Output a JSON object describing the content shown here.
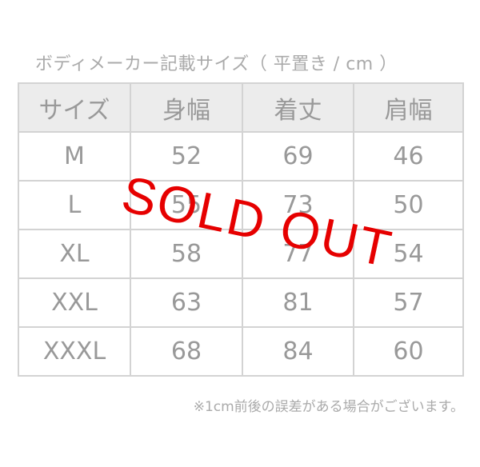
{
  "caption": "ボディメーカー記載サイズ（ 平置き / cm ）",
  "table": {
    "header": [
      "サイズ",
      "身幅",
      "着丈",
      "肩幅"
    ],
    "rows": [
      [
        "M",
        "52",
        "69",
        "46"
      ],
      [
        "L",
        "55",
        "73",
        "50"
      ],
      [
        "XL",
        "58",
        "77",
        "54"
      ],
      [
        "XXL",
        "63",
        "81",
        "57"
      ],
      [
        "XXXL",
        "68",
        "84",
        "60"
      ]
    ]
  },
  "note": "※1cm前後の誤差がある場合がございます。",
  "stamp": "SOLD OUT"
}
